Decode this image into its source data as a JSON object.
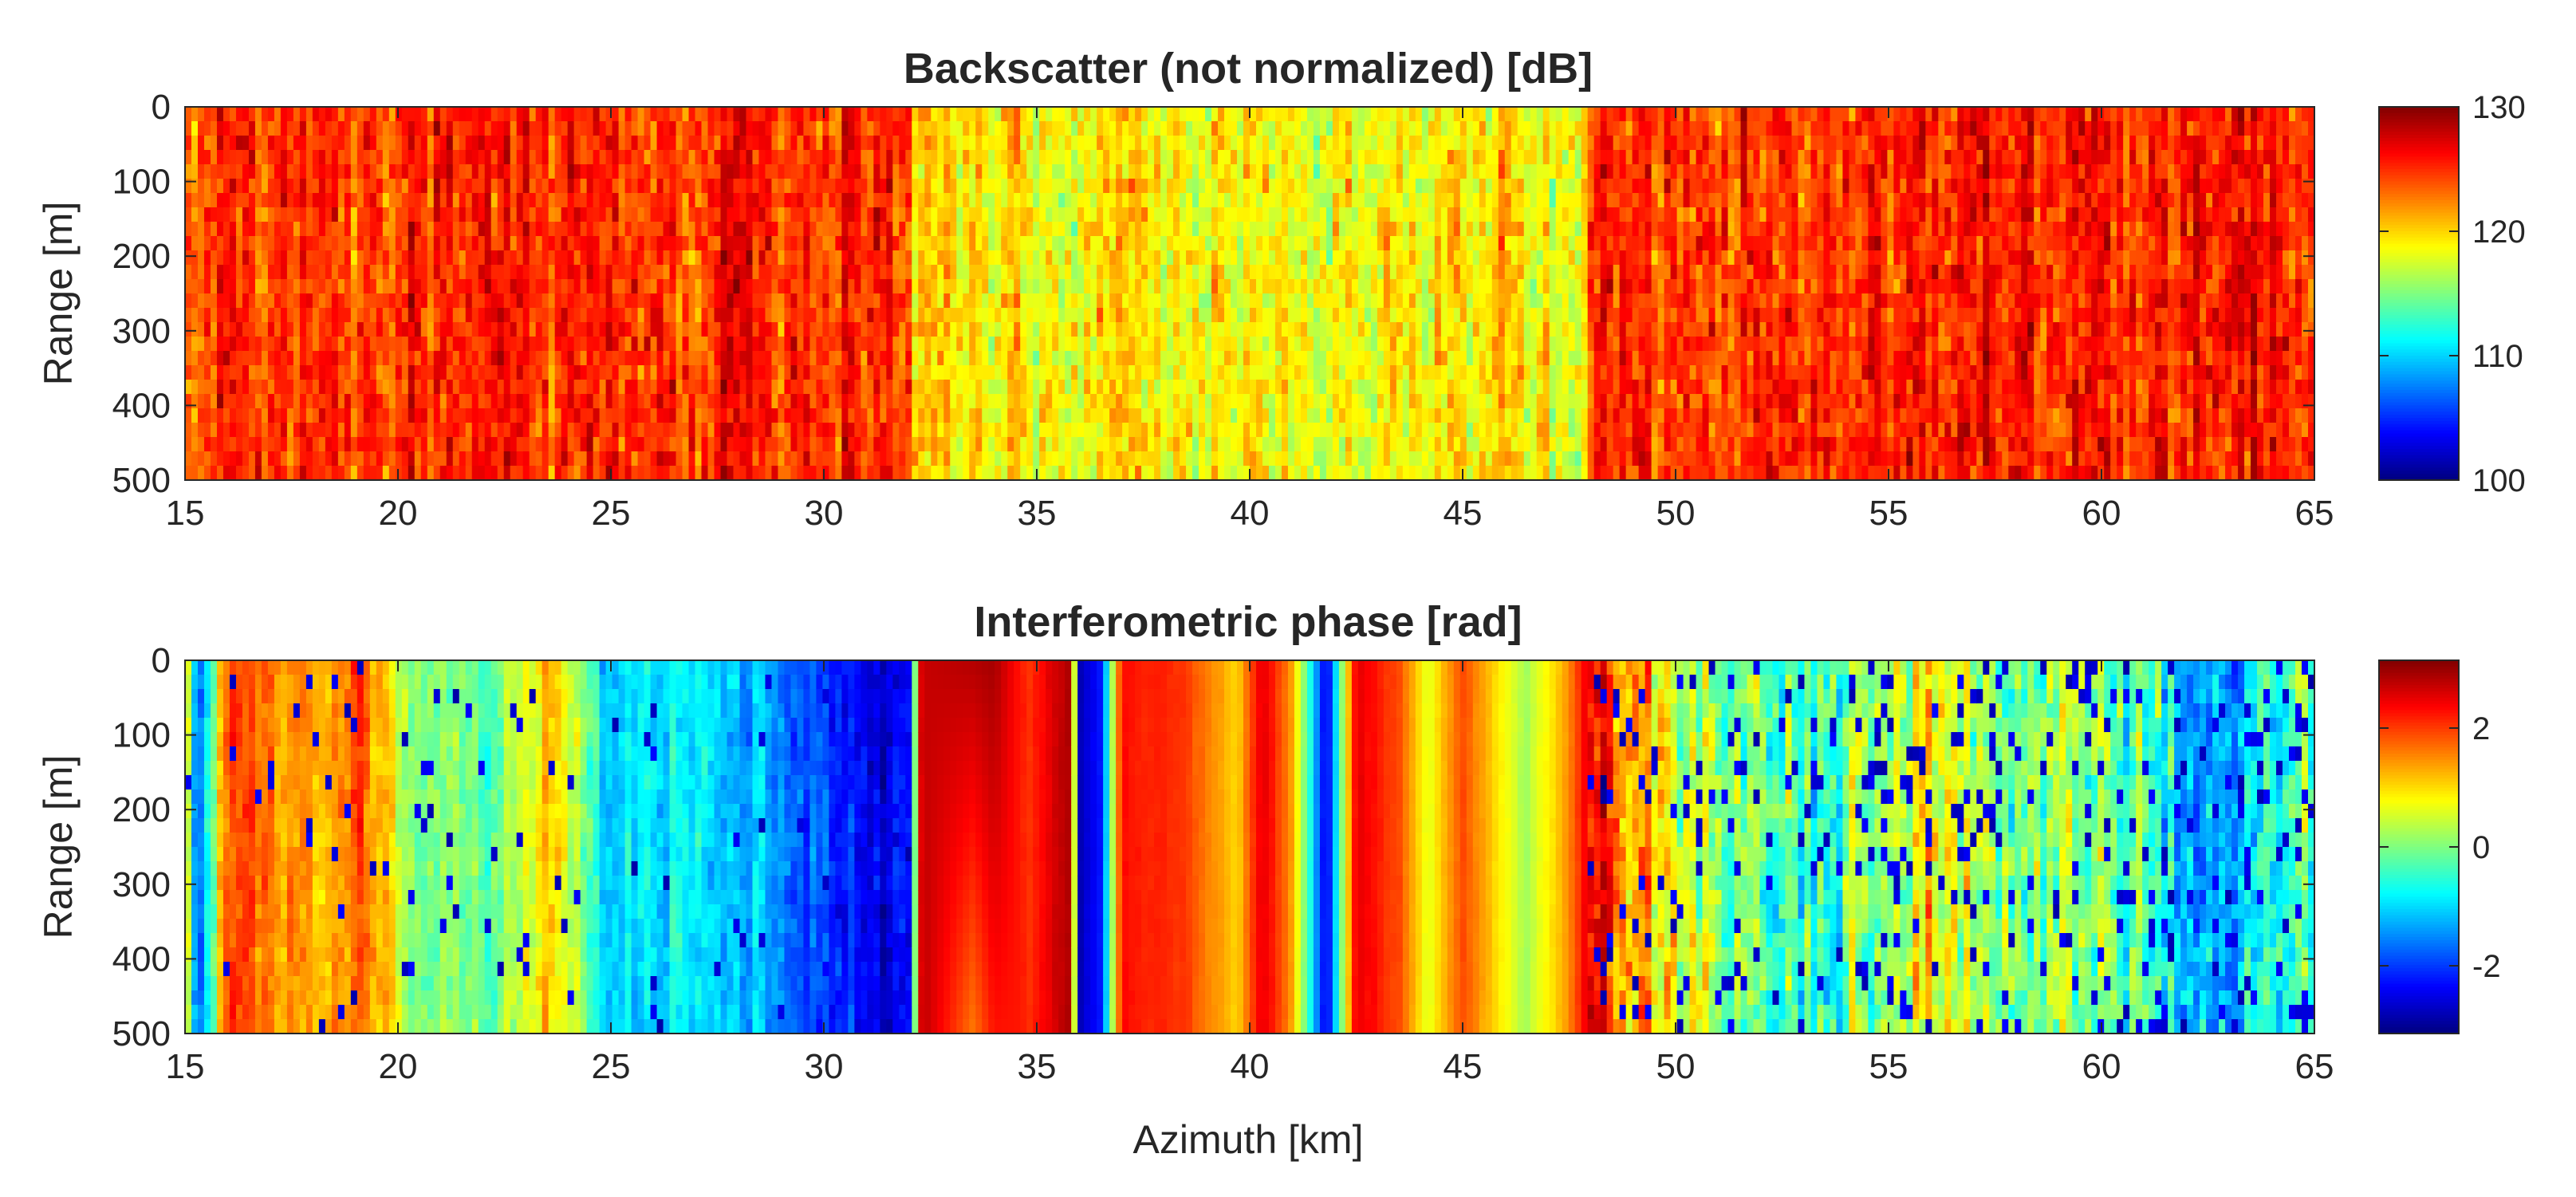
{
  "chart_data": [
    {
      "type": "heatmap",
      "title": "Backscatter (not normalized) [dB]",
      "xlabel": "",
      "ylabel": "Range [m]",
      "xlim": [
        15,
        65
      ],
      "ylim": [
        0,
        500
      ],
      "x_ticks": [
        "15",
        "20",
        "25",
        "30",
        "35",
        "40",
        "45",
        "50",
        "55",
        "60",
        "65"
      ],
      "y_ticks": [
        "0",
        "100",
        "200",
        "300",
        "400",
        "500"
      ],
      "y_direction": "reversed",
      "colormap": "jet",
      "clim": [
        100,
        130
      ],
      "colorbar_ticks": [
        "100",
        "110",
        "120",
        "130"
      ],
      "regions": [
        {
          "azimuth_km": [
            15,
            32
          ],
          "level_dB": 125,
          "texture": "speckle"
        },
        {
          "azimuth_km": [
            32,
            48
          ],
          "level_dB": 119,
          "texture": "speckle"
        },
        {
          "azimuth_km": [
            48,
            65
          ],
          "level_dB": 125,
          "texture": "speckle"
        }
      ]
    },
    {
      "type": "heatmap",
      "title": "Interferometric phase [rad]",
      "xlabel": "Azimuth [km]",
      "ylabel": "Range [m]",
      "xlim": [
        15,
        65
      ],
      "ylim": [
        0,
        500
      ],
      "x_ticks": [
        "15",
        "20",
        "25",
        "30",
        "35",
        "40",
        "45",
        "50",
        "55",
        "60",
        "65"
      ],
      "y_ticks": [
        "0",
        "100",
        "200",
        "300",
        "400",
        "500"
      ],
      "y_direction": "reversed",
      "colormap": "jet",
      "clim": [
        -3.14,
        3.14
      ],
      "colorbar_ticks": [
        "-2",
        "0",
        "2"
      ],
      "phase_profile": [
        {
          "azimuth_km": 15.0,
          "phase_rad": 1.5
        },
        {
          "azimuth_km": 15.3,
          "phase_rad": -2.2
        },
        {
          "azimuth_km": 16.0,
          "phase_rad": 1.8
        },
        {
          "azimuth_km": 18.0,
          "phase_rad": 1.4
        },
        {
          "azimuth_km": 19.0,
          "phase_rad": 1.9
        },
        {
          "azimuth_km": 20.5,
          "phase_rad": 0.2
        },
        {
          "azimuth_km": 22.0,
          "phase_rad": -0.4
        },
        {
          "azimuth_km": 23.5,
          "phase_rad": 1.2
        },
        {
          "azimuth_km": 25.0,
          "phase_rad": -1.0
        },
        {
          "azimuth_km": 28.0,
          "phase_rad": -0.9
        },
        {
          "azimuth_km": 29.5,
          "phase_rad": -2.0
        },
        {
          "azimuth_km": 31.5,
          "phase_rad": -2.6
        },
        {
          "azimuth_km": 32.0,
          "phase_rad": -2.3
        },
        {
          "azimuth_km": 32.3,
          "phase_rad": 2.7
        },
        {
          "azimuth_km": 33.5,
          "phase_rad": 2.8
        },
        {
          "azimuth_km": 34.0,
          "phase_rad": 2.9
        },
        {
          "azimuth_km": 34.8,
          "phase_rad": 2.0
        },
        {
          "azimuth_km": 35.8,
          "phase_rad": 2.9
        },
        {
          "azimuth_km": 36.0,
          "phase_rad": -2.8
        },
        {
          "azimuth_km": 36.5,
          "phase_rad": -2.2
        },
        {
          "azimuth_km": 37.0,
          "phase_rad": 2.3
        },
        {
          "azimuth_km": 38.5,
          "phase_rad": 2.0
        },
        {
          "azimuth_km": 39.7,
          "phase_rad": 1.0
        },
        {
          "azimuth_km": 40.3,
          "phase_rad": 2.6
        },
        {
          "azimuth_km": 41.0,
          "phase_rad": 1.4
        },
        {
          "azimuth_km": 41.8,
          "phase_rad": -2.6
        },
        {
          "azimuth_km": 42.5,
          "phase_rad": 2.5
        },
        {
          "azimuth_km": 43.5,
          "phase_rad": 1.9
        },
        {
          "azimuth_km": 44.2,
          "phase_rad": 0.6
        },
        {
          "azimuth_km": 45.0,
          "phase_rad": 1.9
        },
        {
          "azimuth_km": 46.5,
          "phase_rad": 0.2
        },
        {
          "azimuth_km": 47.5,
          "phase_rad": 1.5
        },
        {
          "azimuth_km": 48.0,
          "phase_rad": 2.7
        },
        {
          "azimuth_km": 50.0,
          "phase_rad": 0.8
        },
        {
          "azimuth_km": 53.0,
          "phase_rad": -0.5
        },
        {
          "azimuth_km": 56.0,
          "phase_rad": 0.6
        },
        {
          "azimuth_km": 60.0,
          "phase_rad": -0.3
        },
        {
          "azimuth_km": 63.0,
          "phase_rad": -1.2
        },
        {
          "azimuth_km": 65.0,
          "phase_rad": 0.2
        }
      ],
      "regions": [
        {
          "azimuth_km": [
            15,
            32
          ],
          "texture": "noisy streaks"
        },
        {
          "azimuth_km": [
            32,
            48
          ],
          "texture": "smooth fringes"
        },
        {
          "azimuth_km": [
            48,
            65
          ],
          "texture": "noisy speckle"
        }
      ]
    }
  ]
}
